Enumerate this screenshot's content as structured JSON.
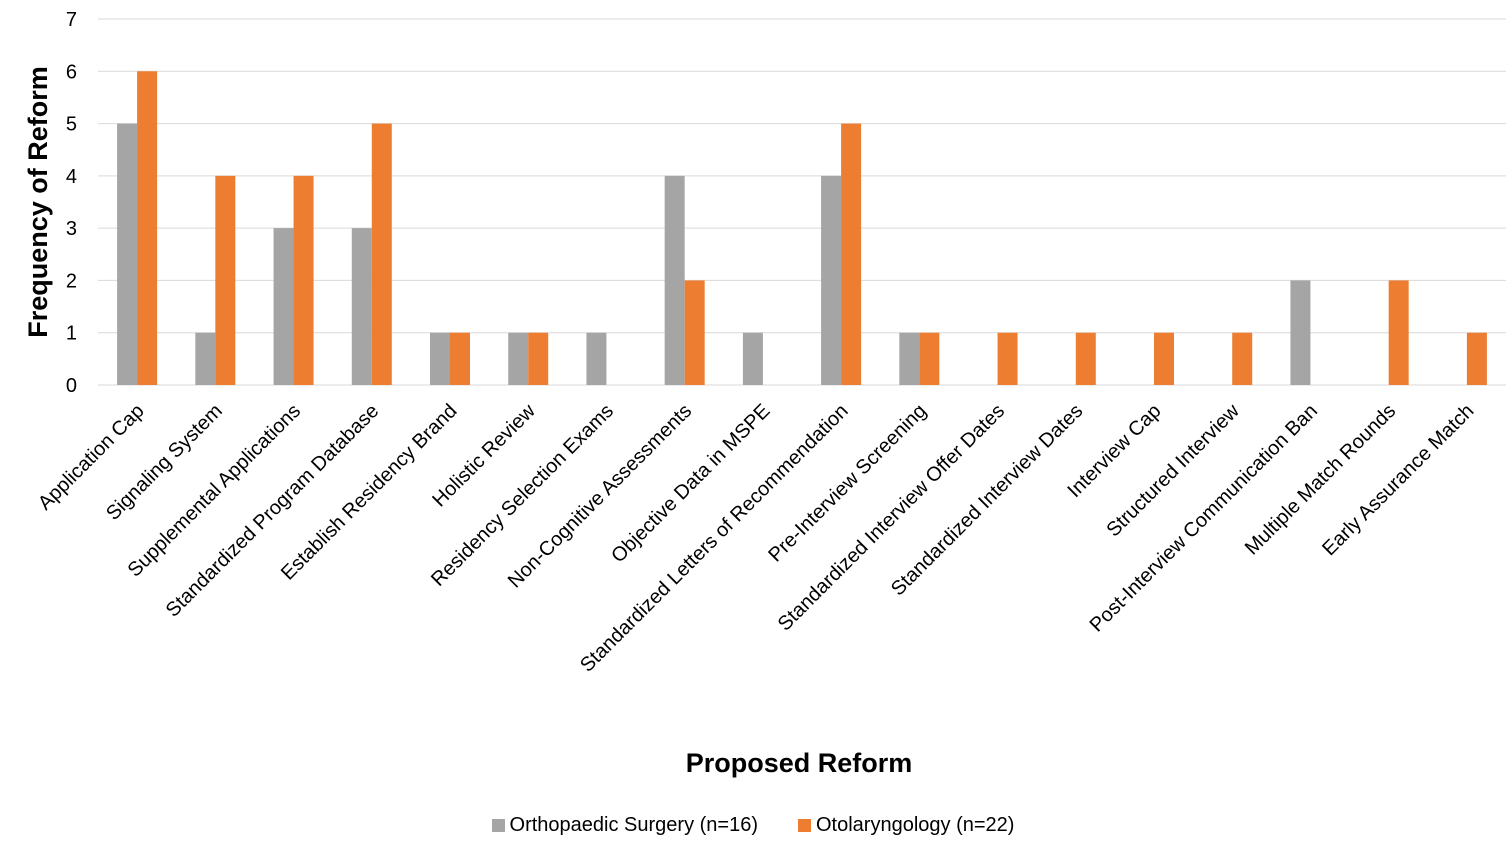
{
  "chart_data": {
    "type": "bar",
    "xlabel": "Proposed Reform",
    "ylabel": "Frequency of Reform",
    "ylim": [
      0,
      7
    ],
    "yticks": [
      0,
      1,
      2,
      3,
      4,
      5,
      6,
      7
    ],
    "grid": true,
    "legend_position": "bottom",
    "categories": [
      "Application Cap",
      "Signaling System",
      "Supplemental Applications",
      "Standardized Program Database",
      "Establish Residency Brand",
      "Holistic Review",
      "Residency Selection Exams",
      "Non-Cognitive Assessments",
      "Objective Data in MSPE",
      "Standardized Letters of Recommendation",
      "Pre-Interview Screening",
      "Standardized Interview Offer Dates",
      "Standardized Interview Dates",
      "Interview Cap",
      "Structured Interview",
      "Post-Interview Communication Ban",
      "Multiple Match Rounds",
      "Early Assurance Match"
    ],
    "series": [
      {
        "name": "Orthopaedic Surgery (n=16)",
        "color": "#a5a5a5",
        "values": [
          5,
          1,
          3,
          3,
          1,
          1,
          1,
          4,
          1,
          4,
          1,
          0,
          0,
          0,
          0,
          2,
          0,
          0
        ]
      },
      {
        "name": "Otolaryngology (n=22)",
        "color": "#ed7d31",
        "values": [
          6,
          4,
          4,
          5,
          1,
          1,
          0,
          2,
          0,
          5,
          1,
          1,
          1,
          1,
          1,
          0,
          2,
          1
        ]
      }
    ]
  }
}
